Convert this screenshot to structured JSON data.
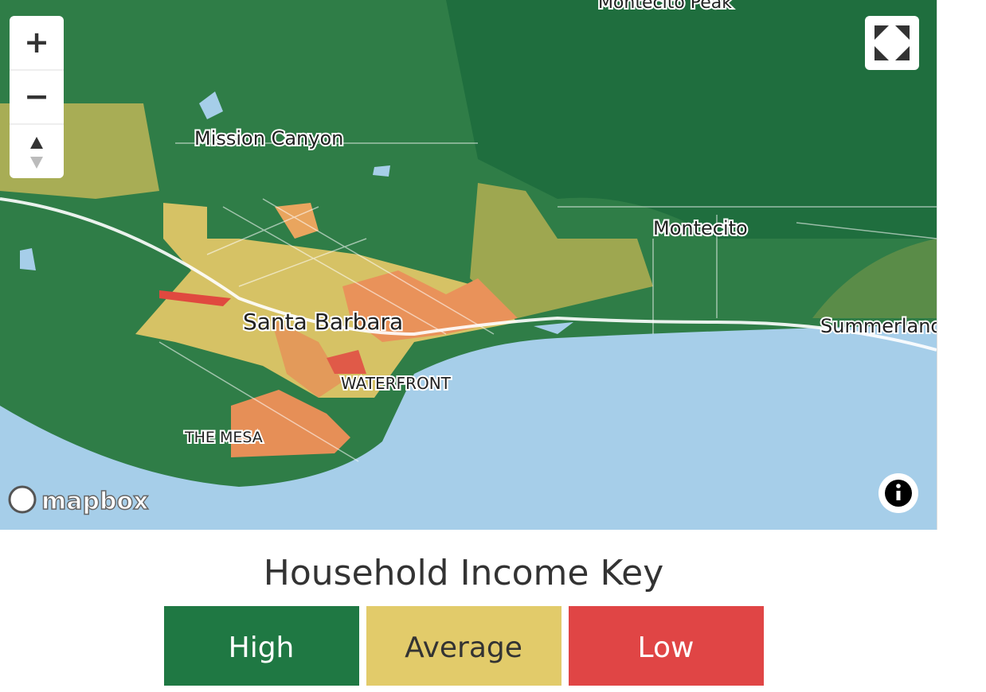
{
  "map": {
    "labels": [
      {
        "text": "Montecito Peak",
        "kind": "peak"
      },
      {
        "text": "Mission Canyon",
        "kind": "place"
      },
      {
        "text": "Montecito",
        "kind": "place"
      },
      {
        "text": "Santa Barbara",
        "kind": "city"
      },
      {
        "text": "Summerland",
        "kind": "place"
      },
      {
        "text": "WATERFRONT",
        "kind": "district"
      },
      {
        "text": "THE MESA",
        "kind": "district"
      }
    ],
    "controls": {
      "zoom_in": "+",
      "zoom_out": "−"
    },
    "attribution": "mapbox"
  },
  "legend": {
    "title": "Household Income Key",
    "items": [
      {
        "label": "High",
        "color": "#1f7843"
      },
      {
        "label": "Average",
        "color": "#e2cb6a"
      },
      {
        "label": "Low",
        "color": "#e04545"
      }
    ]
  }
}
